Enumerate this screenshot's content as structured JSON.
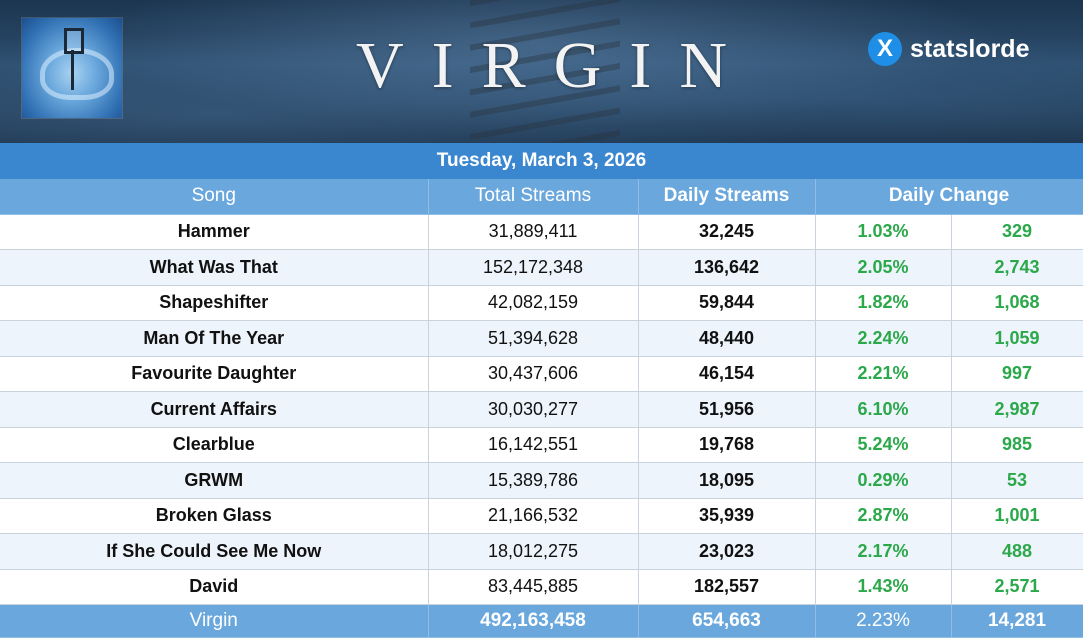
{
  "header": {
    "album_title": "VIRGIN",
    "brand_name": "statslorde",
    "brand_icon_glyph": "X",
    "album_art_icon": "pelvis-xray-art"
  },
  "date": "Tuesday, March 3, 2026",
  "columns": {
    "song": "Song",
    "total_streams": "Total Streams",
    "daily_streams": "Daily Streams",
    "daily_change": "Daily Change"
  },
  "rows": [
    {
      "song": "Hammer",
      "total": "31,889,411",
      "daily": "32,245",
      "pct": "1.03%",
      "change": "329"
    },
    {
      "song": "What Was That",
      "total": "152,172,348",
      "daily": "136,642",
      "pct": "2.05%",
      "change": "2,743"
    },
    {
      "song": "Shapeshifter",
      "total": "42,082,159",
      "daily": "59,844",
      "pct": "1.82%",
      "change": "1,068"
    },
    {
      "song": "Man Of The Year",
      "total": "51,394,628",
      "daily": "48,440",
      "pct": "2.24%",
      "change": "1,059"
    },
    {
      "song": "Favourite Daughter",
      "total": "30,437,606",
      "daily": "46,154",
      "pct": "2.21%",
      "change": "997"
    },
    {
      "song": "Current Affairs",
      "total": "30,030,277",
      "daily": "51,956",
      "pct": "6.10%",
      "change": "2,987"
    },
    {
      "song": "Clearblue",
      "total": "16,142,551",
      "daily": "19,768",
      "pct": "5.24%",
      "change": "985"
    },
    {
      "song": "GRWM",
      "total": "15,389,786",
      "daily": "18,095",
      "pct": "0.29%",
      "change": "53"
    },
    {
      "song": "Broken Glass",
      "total": "21,166,532",
      "daily": "35,939",
      "pct": "2.87%",
      "change": "1,001"
    },
    {
      "song": "If She Could See Me Now",
      "total": "18,012,275",
      "daily": "23,023",
      "pct": "2.17%",
      "change": "488"
    },
    {
      "song": "David",
      "total": "83,445,885",
      "daily": "182,557",
      "pct": "1.43%",
      "change": "2,571"
    }
  ],
  "footer": {
    "label": "Virgin",
    "total": "492,163,458",
    "daily": "654,663",
    "pct": "2.23%",
    "change": "14,281"
  },
  "colors": {
    "header_blue": "#3a86cf",
    "column_blue": "#6aa7dc",
    "positive_green": "#2ba84a",
    "brand_icon_blue": "#1f8ee6"
  }
}
